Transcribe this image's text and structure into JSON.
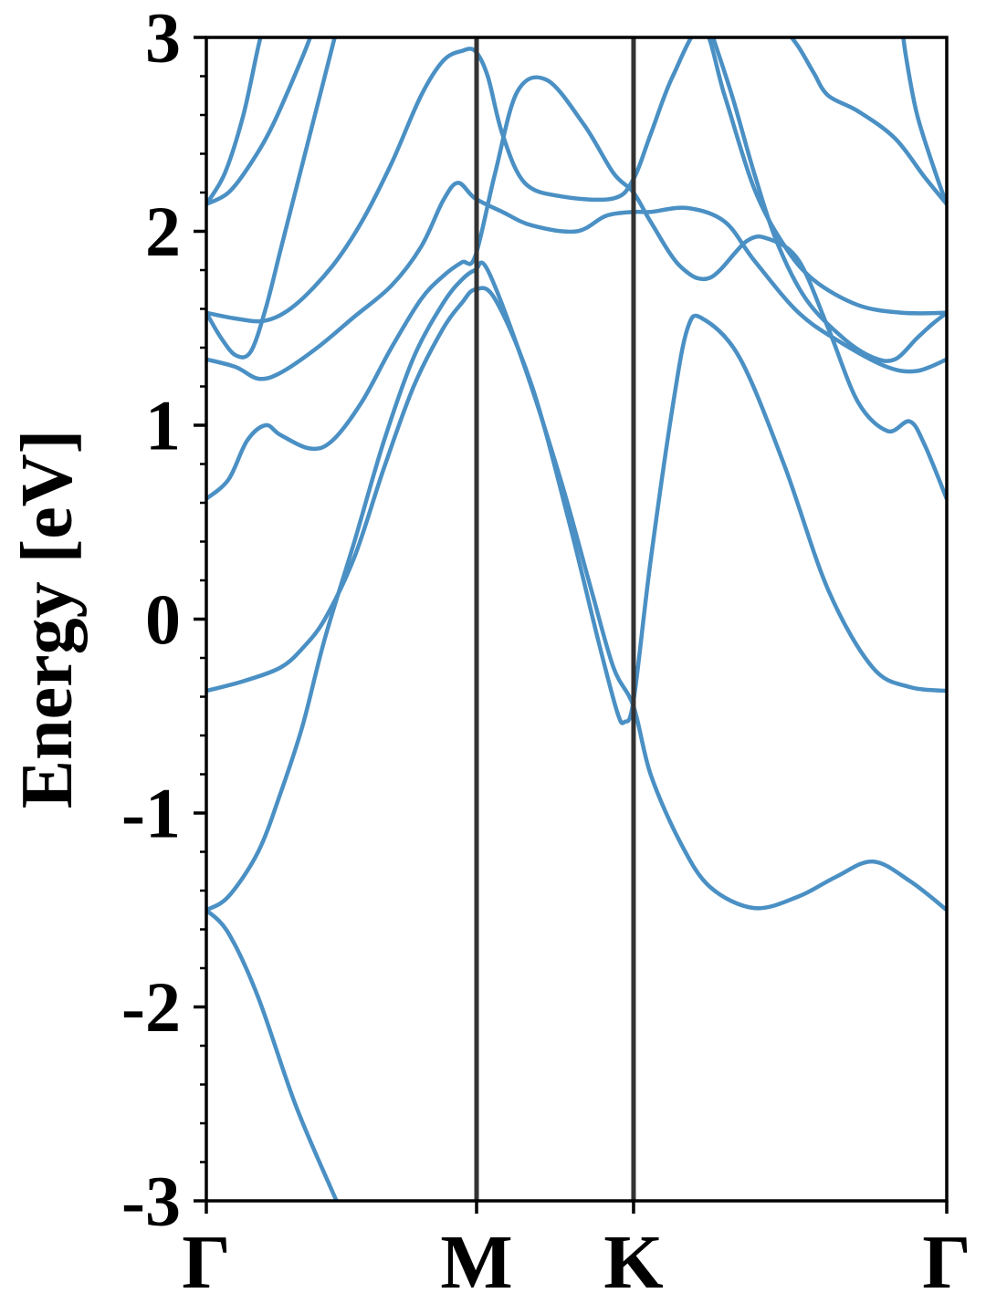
{
  "chart_data": {
    "type": "line",
    "title": "",
    "xlabel": "",
    "ylabel": "Energy [eV]",
    "ylim": [
      -3,
      3
    ],
    "y_ticks": [
      {
        "value": 3,
        "label": "3"
      },
      {
        "value": 2,
        "label": "2"
      },
      {
        "value": 1,
        "label": "1"
      },
      {
        "value": 0,
        "label": "0"
      },
      {
        "value": -1,
        "label": "-1"
      },
      {
        "value": -2,
        "label": "-2"
      },
      {
        "value": -3,
        "label": "-3"
      }
    ],
    "y_minor_step": 0.2,
    "x_range": [
      0,
      1
    ],
    "high_symmetry_points": [
      {
        "label": "Γ",
        "position": 0
      },
      {
        "label": "M",
        "position": 0.365
      },
      {
        "label": "K",
        "position": 0.577
      },
      {
        "label": "Γ",
        "position": 1
      }
    ],
    "grid": false,
    "colors": {
      "band": "#4a90c4",
      "kpath_line": "#333333",
      "frame": "#000000"
    },
    "series": [
      {
        "values": [
          [
            0,
            -1.5
          ],
          [
            0.03,
            -1.62
          ],
          [
            0.07,
            -1.95
          ],
          [
            0.12,
            -2.5
          ],
          [
            0.17,
            -2.95
          ],
          [
            0.2,
            -3.2
          ]
        ]
      },
      {
        "values": [
          [
            0,
            -1.5
          ],
          [
            0.03,
            -1.43
          ],
          [
            0.07,
            -1.2
          ],
          [
            0.1,
            -0.9
          ],
          [
            0.13,
            -0.55
          ],
          [
            0.16,
            -0.1
          ],
          [
            0.2,
            0.4
          ],
          [
            0.24,
            0.92
          ],
          [
            0.28,
            1.35
          ],
          [
            0.32,
            1.63
          ],
          [
            0.345,
            1.75
          ],
          [
            0.363,
            1.8
          ],
          [
            0.38,
            1.8
          ],
          [
            0.43,
            1.3
          ],
          [
            0.48,
            0.7
          ],
          [
            0.52,
            0.15
          ],
          [
            0.55,
            -0.25
          ],
          [
            0.577,
            -0.45
          ],
          [
            0.6,
            -0.8
          ],
          [
            0.64,
            -1.15
          ],
          [
            0.68,
            -1.38
          ],
          [
            0.74,
            -1.49
          ],
          [
            0.8,
            -1.43
          ],
          [
            0.85,
            -1.33
          ],
          [
            0.9,
            -1.25
          ],
          [
            0.95,
            -1.35
          ],
          [
            1,
            -1.5
          ]
        ]
      },
      {
        "values": [
          [
            0,
            -0.37
          ],
          [
            0.05,
            -0.32
          ],
          [
            0.1,
            -0.25
          ],
          [
            0.13,
            -0.15
          ],
          [
            0.16,
            0.0
          ],
          [
            0.2,
            0.32
          ],
          [
            0.24,
            0.78
          ],
          [
            0.28,
            1.2
          ],
          [
            0.32,
            1.5
          ],
          [
            0.345,
            1.63
          ],
          [
            0.363,
            1.7
          ],
          [
            0.39,
            1.65
          ],
          [
            0.44,
            1.2
          ],
          [
            0.49,
            0.5
          ],
          [
            0.53,
            -0.12
          ],
          [
            0.555,
            -0.48
          ],
          [
            0.565,
            -0.53
          ],
          [
            0.577,
            -0.42
          ],
          [
            0.6,
            0.3
          ],
          [
            0.63,
            1.1
          ],
          [
            0.65,
            1.5
          ],
          [
            0.67,
            1.55
          ],
          [
            0.72,
            1.35
          ],
          [
            0.78,
            0.8
          ],
          [
            0.84,
            0.15
          ],
          [
            0.9,
            -0.25
          ],
          [
            0.95,
            -0.35
          ],
          [
            1,
            -0.37
          ]
        ]
      },
      {
        "values": [
          [
            0,
            0.62
          ],
          [
            0.03,
            0.72
          ],
          [
            0.055,
            0.92
          ],
          [
            0.08,
            1.0
          ],
          [
            0.1,
            0.95
          ],
          [
            0.14,
            0.88
          ],
          [
            0.17,
            0.92
          ],
          [
            0.21,
            1.12
          ],
          [
            0.25,
            1.4
          ],
          [
            0.29,
            1.65
          ],
          [
            0.32,
            1.77
          ],
          [
            0.345,
            1.84
          ],
          [
            0.363,
            1.87
          ],
          [
            0.39,
            2.3
          ],
          [
            0.42,
            2.72
          ],
          [
            0.46,
            2.78
          ],
          [
            0.51,
            2.55
          ],
          [
            0.55,
            2.3
          ],
          [
            0.577,
            2.2
          ],
          [
            0.6,
            2.05
          ],
          [
            0.64,
            1.82
          ],
          [
            0.68,
            1.76
          ],
          [
            0.73,
            1.95
          ],
          [
            0.76,
            1.96
          ],
          [
            0.8,
            1.85
          ],
          [
            0.84,
            1.5
          ],
          [
            0.88,
            1.12
          ],
          [
            0.92,
            0.97
          ],
          [
            0.95,
            1.02
          ],
          [
            0.97,
            0.9
          ],
          [
            1,
            0.62
          ]
        ]
      },
      {
        "values": [
          [
            0,
            1.34
          ],
          [
            0.04,
            1.3
          ],
          [
            0.07,
            1.24
          ],
          [
            0.1,
            1.27
          ],
          [
            0.15,
            1.4
          ],
          [
            0.2,
            1.56
          ],
          [
            0.25,
            1.72
          ],
          [
            0.29,
            1.92
          ],
          [
            0.32,
            2.16
          ],
          [
            0.34,
            2.25
          ],
          [
            0.363,
            2.17
          ],
          [
            0.4,
            2.1
          ],
          [
            0.44,
            2.03
          ],
          [
            0.5,
            2.0
          ],
          [
            0.54,
            2.08
          ],
          [
            0.577,
            2.1
          ],
          [
            0.6,
            2.1
          ],
          [
            0.65,
            2.12
          ],
          [
            0.7,
            2.05
          ],
          [
            0.74,
            1.85
          ],
          [
            0.8,
            1.58
          ],
          [
            0.86,
            1.42
          ],
          [
            0.92,
            1.3
          ],
          [
            0.96,
            1.28
          ],
          [
            1,
            1.34
          ]
        ]
      },
      {
        "values": [
          [
            0,
            1.58
          ],
          [
            0.04,
            1.55
          ],
          [
            0.08,
            1.54
          ],
          [
            0.12,
            1.62
          ],
          [
            0.17,
            1.82
          ],
          [
            0.21,
            2.05
          ],
          [
            0.25,
            2.35
          ],
          [
            0.29,
            2.7
          ],
          [
            0.32,
            2.88
          ],
          [
            0.345,
            2.93
          ],
          [
            0.363,
            2.93
          ],
          [
            0.38,
            2.8
          ],
          [
            0.4,
            2.5
          ],
          [
            0.43,
            2.25
          ],
          [
            0.48,
            2.18
          ],
          [
            0.55,
            2.17
          ],
          [
            0.577,
            2.27
          ],
          [
            0.6,
            2.5
          ],
          [
            0.63,
            2.8
          ],
          [
            0.67,
            3.05
          ],
          [
            0.7,
            2.7
          ],
          [
            0.74,
            2.22
          ],
          [
            0.78,
            1.93
          ],
          [
            0.82,
            1.75
          ],
          [
            0.88,
            1.62
          ],
          [
            0.94,
            1.58
          ],
          [
            1,
            1.58
          ]
        ]
      },
      {
        "values": [
          [
            0,
            2.14
          ],
          [
            0.03,
            2.2
          ],
          [
            0.06,
            2.35
          ],
          [
            0.09,
            2.55
          ],
          [
            0.13,
            2.9
          ],
          [
            0.15,
            3.1
          ]
        ]
      },
      {
        "values": [
          [
            0,
            2.14
          ],
          [
            0.025,
            2.3
          ],
          [
            0.05,
            2.6
          ],
          [
            0.07,
            2.95
          ],
          [
            0.08,
            3.1
          ]
        ]
      },
      {
        "values": [
          [
            0,
            1.58
          ],
          [
            0.02,
            1.45
          ],
          [
            0.04,
            1.36
          ],
          [
            0.06,
            1.38
          ],
          [
            0.08,
            1.6
          ],
          [
            0.1,
            1.9
          ],
          [
            0.12,
            2.2
          ],
          [
            0.14,
            2.5
          ],
          [
            0.16,
            2.8
          ],
          [
            0.18,
            3.1
          ]
        ]
      },
      {
        "values": [
          [
            1,
            2.14
          ],
          [
            0.97,
            2.28
          ],
          [
            0.93,
            2.48
          ],
          [
            0.88,
            2.62
          ],
          [
            0.84,
            2.7
          ],
          [
            0.82,
            2.82
          ],
          [
            0.8,
            2.95
          ],
          [
            0.78,
            3.05
          ]
        ]
      },
      {
        "values": [
          [
            1,
            2.14
          ],
          [
            0.985,
            2.3
          ],
          [
            0.96,
            2.6
          ],
          [
            0.945,
            2.9
          ],
          [
            0.94,
            3.05
          ]
        ]
      },
      {
        "values": [
          [
            0.68,
            3.05
          ],
          [
            0.71,
            2.7
          ],
          [
            0.74,
            2.3
          ],
          [
            0.77,
            1.95
          ],
          [
            0.81,
            1.65
          ],
          [
            0.86,
            1.45
          ],
          [
            0.9,
            1.35
          ],
          [
            0.93,
            1.34
          ],
          [
            0.96,
            1.45
          ],
          [
            0.98,
            1.52
          ],
          [
            1,
            1.58
          ]
        ]
      }
    ]
  }
}
